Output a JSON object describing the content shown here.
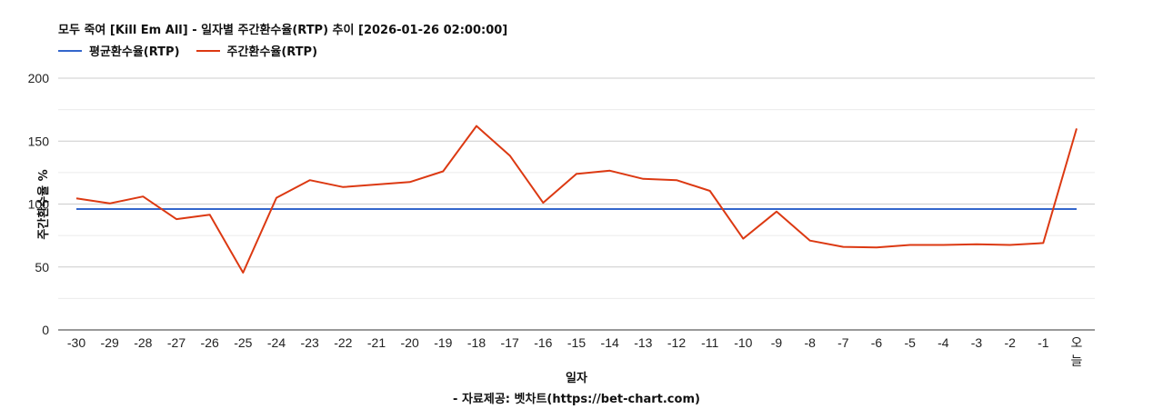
{
  "chart_data": {
    "type": "line",
    "title": "모두 죽여 [Kill Em All] - 일자별 주간환수율(RTP) 추이 [2026-01-26 02:00:00]",
    "xlabel": "일자",
    "ylabel": "주간환수율 %",
    "source": "- 자료제공: 벳차트(https://bet-chart.com)",
    "ylim": [
      0,
      200
    ],
    "yticks": [
      0,
      50,
      100,
      150,
      200
    ],
    "grid": true,
    "legend_position": "top-left",
    "categories": [
      "-30",
      "-29",
      "-28",
      "-27",
      "-26",
      "-25",
      "-24",
      "-23",
      "-22",
      "-21",
      "-20",
      "-19",
      "-18",
      "-17",
      "-16",
      "-15",
      "-14",
      "-13",
      "-12",
      "-11",
      "-10",
      "-9",
      "-8",
      "-7",
      "-6",
      "-5",
      "-4",
      "-3",
      "-2",
      "-1",
      "오늘"
    ],
    "series": [
      {
        "name": "평균환수율(RTP)",
        "color": "#3366cc",
        "values": [
          96,
          96,
          96,
          96,
          96,
          96,
          96,
          96,
          96,
          96,
          96,
          96,
          96,
          96,
          96,
          96,
          96,
          96,
          96,
          96,
          96,
          96,
          96,
          96,
          96,
          96,
          96,
          96,
          96,
          96,
          96
        ]
      },
      {
        "name": "주간환수율(RTP)",
        "color": "#dc3912",
        "values": [
          104.5,
          100.5,
          106,
          88,
          91.5,
          45.5,
          105,
          119,
          113.5,
          115.5,
          117.5,
          126,
          162,
          138.5,
          101,
          124,
          126.5,
          120,
          119,
          110.5,
          72.5,
          94,
          71,
          66,
          65.5,
          67.5,
          67.5,
          68,
          67.5,
          69,
          160
        ]
      }
    ]
  }
}
